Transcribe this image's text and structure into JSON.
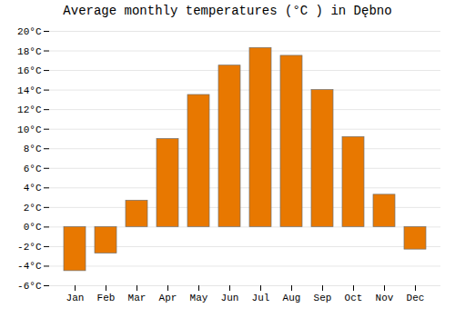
{
  "chart_data": {
    "type": "bar",
    "title": "Average monthly temperatures (°C ) in Dębno",
    "categories": [
      "Jan",
      "Feb",
      "Mar",
      "Apr",
      "May",
      "Jun",
      "Jul",
      "Aug",
      "Sep",
      "Oct",
      "Nov",
      "Dec"
    ],
    "values": [
      -4.5,
      -2.7,
      2.7,
      9.0,
      13.5,
      16.5,
      18.3,
      17.5,
      14.0,
      9.2,
      3.3,
      -2.3
    ],
    "color": "#E87800",
    "ylim": [
      -6,
      20
    ],
    "yticks": [
      {
        "value": -6,
        "label": "-6°C"
      },
      {
        "value": -4,
        "label": "-4°C"
      },
      {
        "value": -2,
        "label": "-2°C"
      },
      {
        "value": 0,
        "label": "0°C"
      },
      {
        "value": 2,
        "label": "2°C"
      },
      {
        "value": 4,
        "label": "4°C"
      },
      {
        "value": 6,
        "label": "6°C"
      },
      {
        "value": 8,
        "label": "8°C"
      },
      {
        "value": 10,
        "label": "10°C"
      },
      {
        "value": 12,
        "label": "12°C"
      },
      {
        "value": 14,
        "label": "14°C"
      },
      {
        "value": 16,
        "label": "16°C"
      },
      {
        "value": 18,
        "label": "18°C"
      },
      {
        "value": 20,
        "label": "20°C"
      }
    ],
    "grid": true
  }
}
